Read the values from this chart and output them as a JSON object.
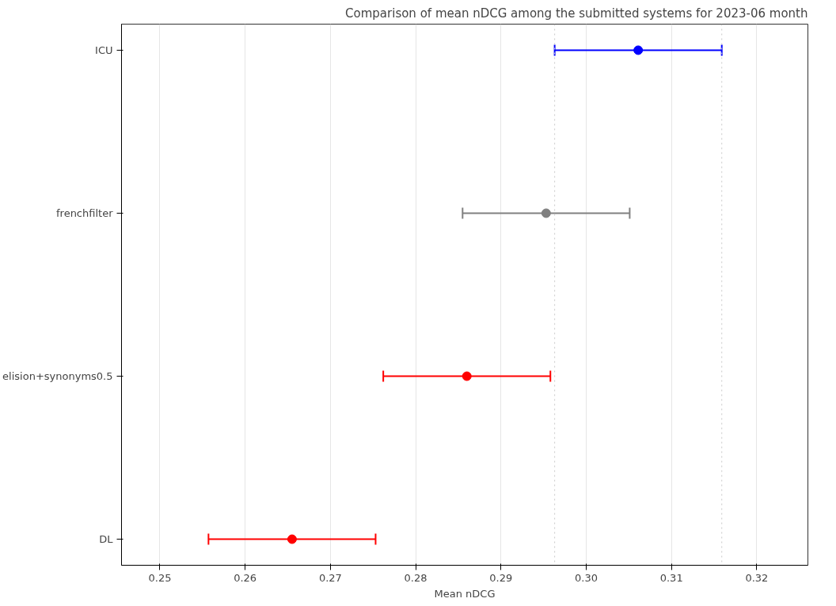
{
  "chart_data": {
    "type": "scatter",
    "orientation": "horizontal",
    "title": "Comparison of mean nDCG among the submitted systems for 2023-06 month",
    "xlabel": "Mean nDCG",
    "categories": [
      "ICU",
      "frenchfilter",
      "elision+synonyms0.5",
      "DL"
    ],
    "values": [
      0.3061,
      0.2953,
      0.286,
      0.2655
    ],
    "errors": [
      0.0098,
      0.0098,
      0.0098,
      0.0098
    ],
    "colors": [
      "#0000ff",
      "#808080",
      "#ff0000",
      "#ff0000"
    ],
    "xlim": [
      0.2455,
      0.326
    ],
    "xticks": [
      0.25,
      0.26,
      0.27,
      0.28,
      0.29,
      {
        "value": 0.3,
        "label": "0.30"
      },
      0.31,
      0.32
    ],
    "grid": "x",
    "marker": "circle",
    "ref_lines": [
      {
        "axis": "x",
        "value": 0.2963,
        "color": "#c8c8c8",
        "line_style": "dotted"
      },
      {
        "axis": "x",
        "value": 0.3159,
        "color": "#c8c8c8",
        "line_style": "dotted"
      }
    ]
  }
}
